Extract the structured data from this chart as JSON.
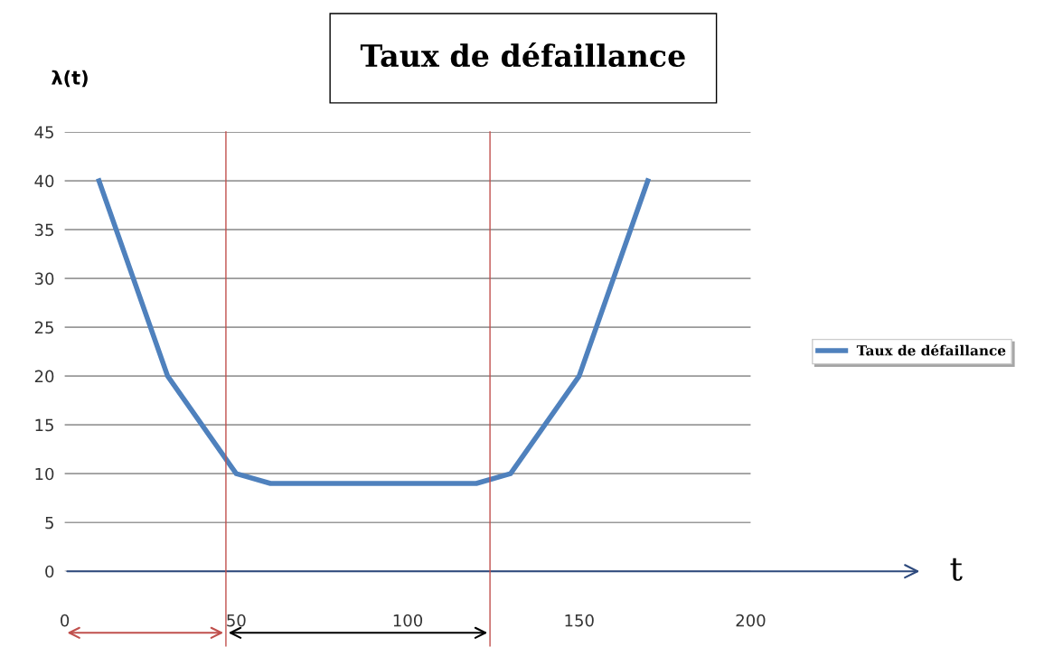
{
  "chart_data": {
    "type": "line",
    "title": "Taux de défaillance",
    "annotations": [
      "t"
    ],
    "ylabel": "λ(t)",
    "x": [
      10,
      30,
      50,
      60,
      120,
      130,
      150,
      170
    ],
    "series": [
      {
        "name": "Taux de défaillance",
        "color": "#4f81bd",
        "values": [
          40,
          20,
          10,
          9,
          9,
          10,
          20,
          40
        ]
      }
    ],
    "xlim": [
      0,
      200
    ],
    "xticks": [
      0,
      50,
      100,
      150,
      200
    ],
    "ylim": [
      0,
      45
    ],
    "yticks": [
      0,
      5,
      10,
      15,
      20,
      25,
      30,
      35,
      40,
      45
    ],
    "ref_lines": [
      {
        "axis": "x",
        "value": 47,
        "label": null,
        "color": "#c0504d"
      },
      {
        "axis": "x",
        "value": 124,
        "label": null,
        "color": "#c0504d"
      }
    ],
    "grid": "y",
    "legend": "right",
    "marker": "none",
    "line_style": "solid"
  }
}
